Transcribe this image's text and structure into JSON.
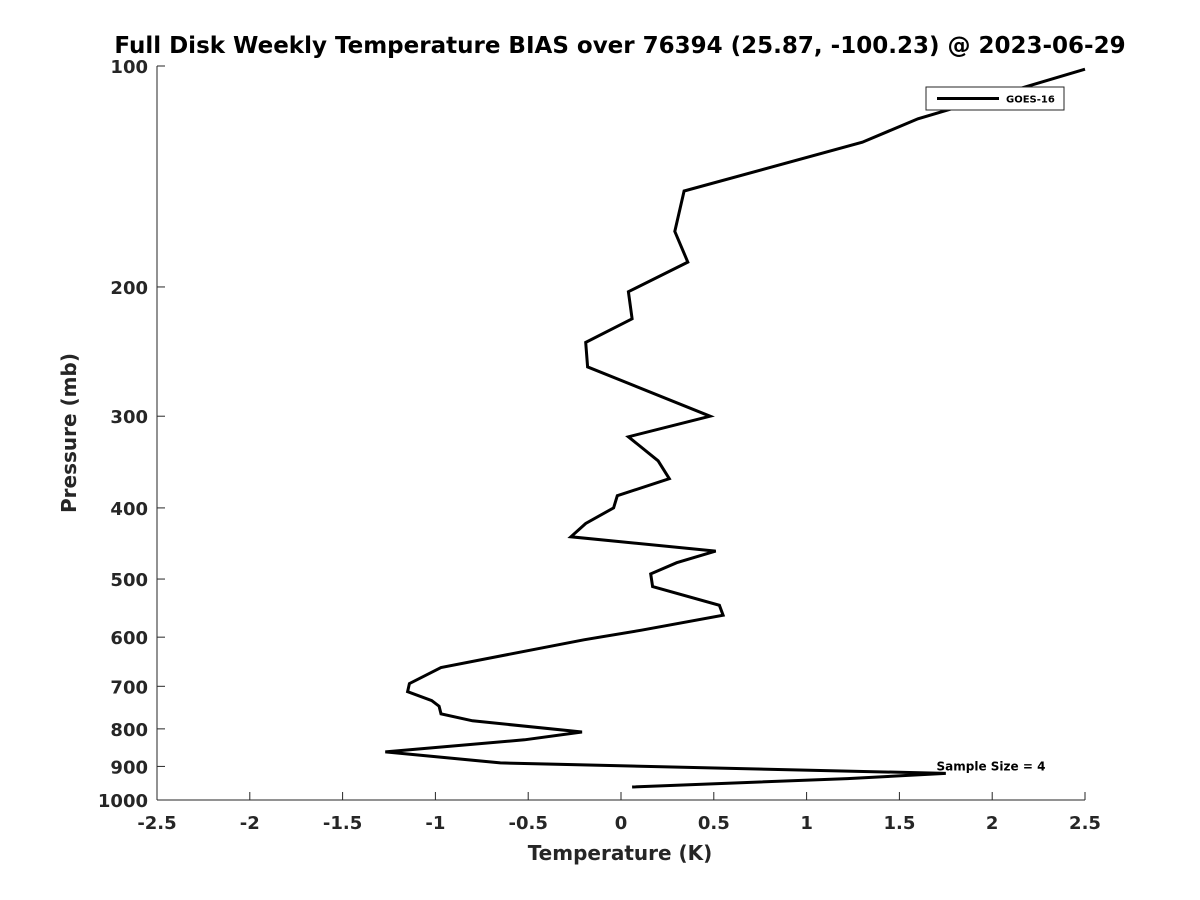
{
  "chart_data": {
    "type": "line",
    "title": "Full Disk Weekly Temperature BIAS over 76394 (25.87, -100.23) @ 2023-06-29",
    "xlabel": "Temperature (K)",
    "ylabel": "Pressure (mb)",
    "xlim": [
      -2.5,
      2.5
    ],
    "ylim": [
      1000,
      100
    ],
    "yscale": "log",
    "y_reversed": true,
    "xticks": [
      -2.5,
      -2,
      -1.5,
      -1,
      -0.5,
      0,
      0.5,
      1,
      1.5,
      2,
      2.5
    ],
    "xtick_labels": [
      "-2.5",
      "-2",
      "-1.5",
      "-1",
      "-0.5",
      "0",
      "0.5",
      "1",
      "1.5",
      "2",
      "2.5"
    ],
    "yticks": [
      100,
      200,
      300,
      400,
      500,
      600,
      700,
      800,
      900,
      1000
    ],
    "ytick_labels": [
      "100",
      "200",
      "300",
      "400",
      "500",
      "600",
      "700",
      "800",
      "900",
      "1000"
    ],
    "grid": false,
    "legend_position": "top-right",
    "series": [
      {
        "name": "GOES-16",
        "color": "#000000",
        "points": [
          [
            2.5,
            101
          ],
          [
            1.6,
            118
          ],
          [
            1.3,
            127
          ],
          [
            0.34,
            148
          ],
          [
            0.29,
            168
          ],
          [
            0.36,
            185
          ],
          [
            0.04,
            203
          ],
          [
            0.06,
            221
          ],
          [
            -0.19,
            238
          ],
          [
            -0.18,
            257
          ],
          [
            0.48,
            300
          ],
          [
            0.04,
            320
          ],
          [
            0.2,
            345
          ],
          [
            0.26,
            365
          ],
          [
            -0.02,
            385
          ],
          [
            -0.04,
            400
          ],
          [
            -0.19,
            420
          ],
          [
            -0.27,
            438
          ],
          [
            0.51,
            458
          ],
          [
            0.3,
            475
          ],
          [
            0.16,
            492
          ],
          [
            0.17,
            512
          ],
          [
            0.53,
            543
          ],
          [
            0.55,
            560
          ],
          [
            0.11,
            587
          ],
          [
            -0.2,
            605
          ],
          [
            -0.97,
            660
          ],
          [
            -1.14,
            694
          ],
          [
            -1.15,
            712
          ],
          [
            -1.02,
            732
          ],
          [
            -0.98,
            745
          ],
          [
            -0.97,
            763
          ],
          [
            -0.8,
            780
          ],
          [
            -0.21,
            808
          ],
          [
            -0.52,
            828
          ],
          [
            -1.27,
            860
          ],
          [
            -0.65,
            890
          ],
          [
            1.75,
            920
          ],
          [
            1.22,
            935
          ],
          [
            0.06,
            960
          ]
        ]
      }
    ],
    "annotations": [
      {
        "text": "Sample Size = 4",
        "x": 1.7,
        "y": 900
      }
    ]
  }
}
